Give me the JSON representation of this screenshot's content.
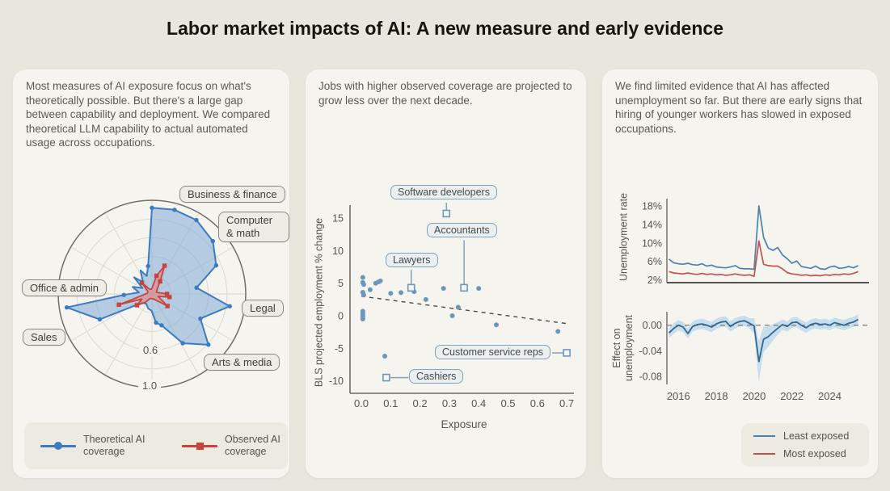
{
  "title": "Labor market impacts of AI: A new measure and early evidence",
  "radar_panel": {
    "text": "Most measures of AI exposure focus on what's theoretically possible. But there's a large gap between capability and deployment. We compared theoretical LLM capability to actual automated usage across occupations.",
    "occupation_labels": [
      "Business & finance",
      "Computer & math",
      "Legal",
      "Arts & media",
      "Sales",
      "Office & admin"
    ],
    "ring_labels": {
      "r06": "0.6",
      "r10": "1.0"
    },
    "legend": {
      "theoretical": "Theoretical AI coverage",
      "observed": "Observed AI coverage"
    }
  },
  "scatter_panel": {
    "text": "Jobs with higher observed coverage are projected to grow less over the next decade.",
    "xlabel": "Exposure",
    "ylabel": "BLS projected employment % change"
  },
  "lines_panel": {
    "text": "We find limited evidence that AI has affected unemployment so far. But there are early signs that hiring of younger workers has slowed in exposed occupations.",
    "top_ylabel": "Unemployment rate",
    "bottom_ylabel": "Effect on unemployment",
    "legend": {
      "least": "Least exposed",
      "most": "Most exposed"
    }
  },
  "chart_data": [
    {
      "id": "radar",
      "type": "radar",
      "axis_max": 1.0,
      "ring_ticks": [
        0.6,
        1.0
      ],
      "category_labels": [
        "Business & finance",
        "Computer & math",
        "Legal",
        "Arts & media",
        "Sales",
        "Office & admin"
      ],
      "series": [
        {
          "name": "Theoretical AI coverage",
          "color": "#3b7cc0",
          "fill": "rgba(125,170,215,0.55)",
          "marker": "circle",
          "points": [
            [
              0,
              0.92
            ],
            [
              15,
              0.93
            ],
            [
              31,
              0.92
            ],
            [
              49,
              0.86
            ],
            [
              66,
              0.75
            ],
            [
              82,
              0.48
            ],
            [
              99,
              0.84
            ],
            [
              117,
              0.58
            ],
            [
              132,
              0.81
            ],
            [
              148,
              0.62
            ],
            [
              163,
              0.35
            ],
            [
              172,
              0.31
            ],
            [
              181,
              0.18
            ],
            [
              195,
              0.16
            ],
            [
              210,
              0.12
            ],
            [
              228,
              0.14
            ],
            [
              244,
              0.62
            ],
            [
              261,
              0.92
            ],
            [
              268,
              0.3
            ],
            [
              277,
              0.14
            ],
            [
              290,
              0.22
            ],
            [
              302,
              0.12
            ],
            [
              313,
              0.26
            ],
            [
              323,
              0.16
            ],
            [
              334,
              0.28
            ],
            [
              344,
              0.2
            ],
            [
              352,
              0.3
            ]
          ]
        },
        {
          "name": "Observed AI coverage",
          "color": "#c8423e",
          "fill": "rgba(238,120,112,0.5)",
          "marker": "square",
          "points": [
            [
              0,
              0.06
            ],
            [
              14,
              0.2
            ],
            [
              24,
              0.33
            ],
            [
              33,
              0.16
            ],
            [
              50,
              0.07
            ],
            [
              70,
              0.05
            ],
            [
              90,
              0.16
            ],
            [
              100,
              0.19
            ],
            [
              112,
              0.07
            ],
            [
              128,
              0.21
            ],
            [
              140,
              0.1
            ],
            [
              160,
              0.06
            ],
            [
              180,
              0.05
            ],
            [
              200,
              0.05
            ],
            [
              220,
              0.12
            ],
            [
              233,
              0.2
            ],
            [
              243,
              0.12
            ],
            [
              252,
              0.37
            ],
            [
              262,
              0.1
            ],
            [
              280,
              0.05
            ],
            [
              300,
              0.05
            ],
            [
              318,
              0.16
            ],
            [
              332,
              0.06
            ],
            [
              348,
              0.05
            ]
          ]
        }
      ]
    },
    {
      "id": "scatter",
      "type": "scatter",
      "xlabel": "Exposure",
      "ylabel": "BLS projected employment % change",
      "xlim": [
        0,
        0.7
      ],
      "ylim": [
        -12,
        17
      ],
      "xticks": [
        0.0,
        0.1,
        0.2,
        0.3,
        0.4,
        0.5,
        0.6,
        0.7
      ],
      "yticks": [
        15,
        10,
        5,
        0,
        -5,
        -10
      ],
      "point_color": "#6d97ba",
      "points": [
        [
          0.005,
          5.9
        ],
        [
          0.005,
          5.1
        ],
        [
          0.008,
          4.8
        ],
        [
          0.005,
          3.6
        ],
        [
          0.008,
          3.2
        ],
        [
          0.03,
          4.0
        ],
        [
          0.049,
          5.0
        ],
        [
          0.058,
          5.2
        ],
        [
          0.065,
          5.35
        ],
        [
          0.005,
          0.7
        ],
        [
          0.005,
          0.4
        ],
        [
          0.005,
          0.1
        ],
        [
          0.005,
          -0.2
        ],
        [
          0.005,
          -0.5
        ],
        [
          0.1,
          3.45
        ],
        [
          0.135,
          3.55
        ],
        [
          0.18,
          3.7
        ],
        [
          0.22,
          2.5
        ],
        [
          0.28,
          4.2
        ],
        [
          0.4,
          4.2
        ],
        [
          0.33,
          1.3
        ],
        [
          0.31,
          0.0
        ],
        [
          0.46,
          -1.4
        ],
        [
          0.67,
          -2.4
        ],
        [
          0.08,
          -6.2
        ]
      ],
      "labeled_points": [
        {
          "label": "Software developers",
          "x": 0.29,
          "y": 15.7
        },
        {
          "label": "Accountants",
          "x": 0.35,
          "y": 4.3
        },
        {
          "label": "Lawyers",
          "x": 0.17,
          "y": 4.3
        },
        {
          "label": "Customer service reps",
          "x": 0.7,
          "y": -5.7
        },
        {
          "label": "Cashiers",
          "x": 0.085,
          "y": -9.5
        }
      ],
      "trend": {
        "x1": 0,
        "y1": 3.0,
        "x2": 0.7,
        "y2": -1.2,
        "style": "dashed"
      }
    },
    {
      "id": "unemployment",
      "type": "line",
      "ylabel": "Unemployment rate",
      "yticks": [
        18,
        14,
        10,
        6,
        2
      ],
      "x_start": 2015.5,
      "x_step": 0.25,
      "series": [
        {
          "name": "Least exposed",
          "color": "#4f82ab",
          "values": [
            6.5,
            5.7,
            5.5,
            5.4,
            5.6,
            5.3,
            5.2,
            5.5,
            5.0,
            5.2,
            4.8,
            4.7,
            4.6,
            4.8,
            5.1,
            4.5,
            4.4,
            4.4,
            4.3,
            18.0,
            11.2,
            8.9,
            8.4,
            9.0,
            7.4,
            6.6,
            5.6,
            6.1,
            4.9,
            4.7,
            4.5,
            5.0,
            4.4,
            4.3,
            4.8,
            5.0,
            4.5,
            4.6,
            4.9,
            4.6,
            5.1
          ]
        },
        {
          "name": "Most exposed",
          "color": "#c15350",
          "values": [
            3.8,
            3.5,
            3.4,
            3.3,
            3.5,
            3.3,
            3.2,
            3.4,
            3.2,
            3.3,
            3.1,
            3.2,
            3.0,
            3.1,
            3.3,
            3.1,
            3.0,
            3.1,
            2.8,
            10.4,
            5.4,
            5.1,
            5.0,
            5.0,
            4.4,
            3.6,
            3.3,
            3.2,
            3.0,
            3.1,
            2.9,
            3.0,
            2.9,
            3.1,
            3.0,
            3.2,
            3.1,
            3.3,
            3.2,
            3.4,
            3.8
          ]
        }
      ]
    },
    {
      "id": "effect",
      "type": "line-band",
      "ylabel": "Effect on unemployment",
      "yticks": [
        0,
        -0.04,
        -0.08
      ],
      "xticks": [
        2016,
        2018,
        2020,
        2022,
        2024
      ],
      "x_start": 2015.5,
      "x_step": 0.25,
      "zero_line": true,
      "series": [
        {
          "name": "effect",
          "color": "#336690",
          "band": "rgba(150,200,235,0.5)",
          "values": [
            -0.012,
            -0.005,
            0.0,
            -0.003,
            -0.013,
            -0.002,
            0.001,
            0.002,
            0.0,
            -0.003,
            0.002,
            0.005,
            0.006,
            -0.002,
            0.003,
            0.006,
            0.007,
            0.003,
            -0.001,
            -0.057,
            -0.022,
            -0.018,
            -0.011,
            -0.005,
            0.001,
            -0.002,
            0.004,
            0.005,
            0.0,
            -0.004,
            0.001,
            0.003,
            0.001,
            0.002,
            0.0,
            0.004,
            0.002,
            0.0,
            0.003,
            0.005,
            0.009
          ],
          "ci": [
            0.008,
            0.008,
            0.008,
            0.008,
            0.008,
            0.008,
            0.008,
            0.008,
            0.008,
            0.008,
            0.008,
            0.008,
            0.008,
            0.008,
            0.008,
            0.008,
            0.008,
            0.008,
            0.012,
            0.032,
            0.02,
            0.016,
            0.013,
            0.01,
            0.008,
            0.008,
            0.008,
            0.008,
            0.008,
            0.008,
            0.008,
            0.008,
            0.008,
            0.008,
            0.008,
            0.008,
            0.008,
            0.008,
            0.008,
            0.008,
            0.008
          ]
        }
      ]
    }
  ]
}
